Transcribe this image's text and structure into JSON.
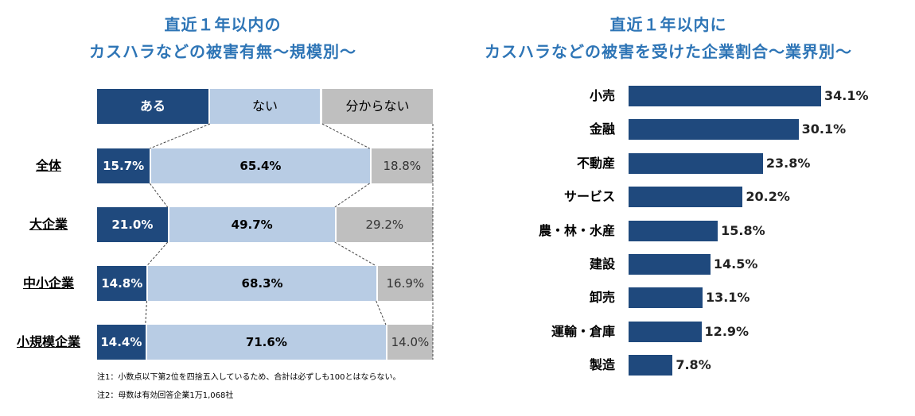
{
  "left_title": [
    "直近１年以内の",
    "カスハラなどの被害有無～規模別～"
  ],
  "right_title": [
    "直近１年以内に",
    "カスハラなどの被害を受けた企業割合～業界別～"
  ],
  "notes": [
    "注1：小数点以下第2位を四捨五入しているため、合計は必ずしも100とはならない。",
    "注2：母数は有効回答企業1万1,068社"
  ],
  "colors": {
    "aru": "#1f497d",
    "nai": "#b8cce4",
    "wakaranai": "#bfbfbf",
    "bar": "#1f497d",
    "title": "#2e75b6"
  },
  "chart_data": [
    {
      "type": "bar",
      "stacked": true,
      "orientation": "horizontal",
      "title": "直近１年以内の カスハラなどの被害有無～規模別～",
      "legend": [
        "ある",
        "ない",
        "分からない"
      ],
      "legend_placement": "top",
      "categories": [
        "全体",
        "大企業",
        "中小企業",
        "小規模企業"
      ],
      "series": [
        {
          "name": "ある",
          "values": [
            15.7,
            21.0,
            14.8,
            14.4
          ],
          "labels": [
            "15.7%",
            "21.0%",
            "14.8%",
            "14.4%"
          ]
        },
        {
          "name": "ない",
          "values": [
            65.4,
            49.7,
            68.3,
            71.6
          ],
          "labels": [
            "65.4%",
            "49.7%",
            "68.3%",
            "71.6%"
          ]
        },
        {
          "name": "分からない",
          "values": [
            18.8,
            29.2,
            16.9,
            14.0
          ],
          "labels": [
            "18.8%",
            "29.2%",
            "16.9%",
            "14.0%"
          ]
        }
      ]
    },
    {
      "type": "bar",
      "orientation": "horizontal",
      "title": "直近１年以内に カスハラなどの被害を受けた企業割合～業界別～",
      "categories": [
        "小売",
        "金融",
        "不動産",
        "サービス",
        "農・林・水産",
        "建設",
        "卸売",
        "運輸・倉庫",
        "製造"
      ],
      "values": [
        34.1,
        30.1,
        23.8,
        20.2,
        15.8,
        14.5,
        13.1,
        12.9,
        7.8
      ],
      "labels": [
        "34.1%",
        "30.1%",
        "23.8%",
        "20.2%",
        "15.8%",
        "14.5%",
        "13.1%",
        "12.9%",
        "7.8%"
      ]
    }
  ]
}
